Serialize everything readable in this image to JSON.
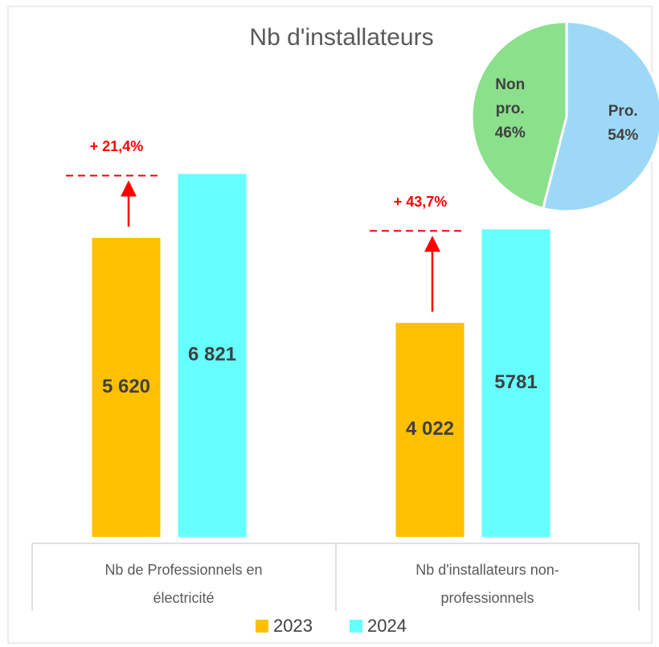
{
  "chart_data": [
    {
      "type": "bar",
      "title": "Nb d'installateurs",
      "categories": [
        "Nb de Professionnels en électricité",
        "Nb d'installateurs non-professionnels"
      ],
      "series": [
        {
          "name": "2023",
          "color": "#FFC000",
          "values": [
            5620,
            4022
          ],
          "value_labels": [
            "5 620",
            "4 022"
          ]
        },
        {
          "name": "2024",
          "color": "#66FFFF",
          "values": [
            6821,
            5781
          ],
          "value_labels": [
            "6 821",
            "5781"
          ]
        }
      ],
      "ylim": [
        0,
        10000
      ],
      "annotations": [
        "+ 21,4%",
        "+ 43,7%"
      ]
    },
    {
      "type": "pie",
      "categories": [
        "Non pro.",
        "Pro."
      ],
      "values": [
        46,
        54
      ],
      "value_labels": [
        "46%",
        "54%"
      ],
      "colors": [
        "#8BE08B",
        "#9DD9F7"
      ]
    }
  ]
}
